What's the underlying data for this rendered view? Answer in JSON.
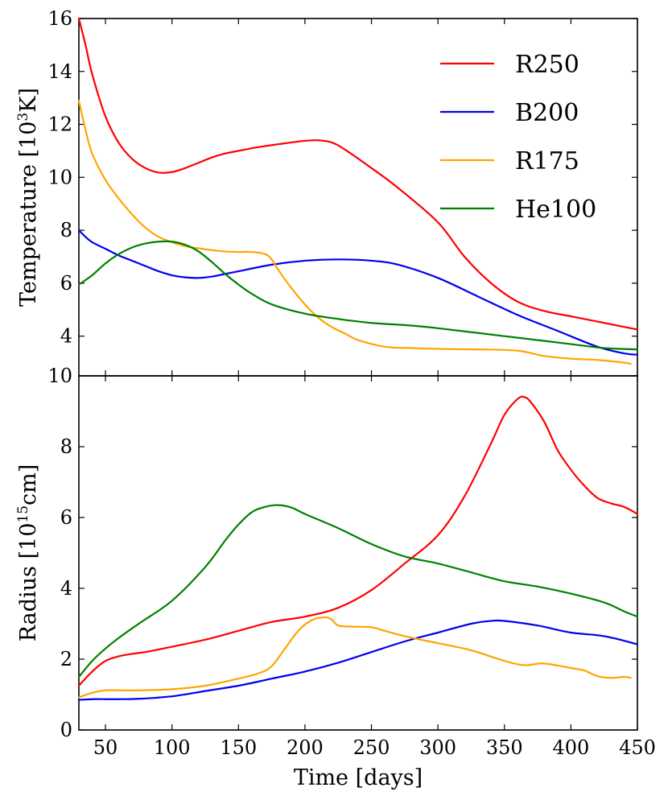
{
  "chart_data": [
    {
      "type": "line",
      "panel": "top",
      "ylabel_parts": [
        "Temperature [10",
        "3",
        "K]"
      ],
      "xlabel": "",
      "xlim": [
        30,
        450
      ],
      "ylim": [
        2.5,
        16
      ],
      "yticks": [
        4,
        6,
        8,
        10,
        12,
        14,
        16
      ],
      "ytick_labels": [
        "4",
        "6",
        "8",
        "10",
        "12",
        "14",
        "16"
      ],
      "legend_location": "top-right",
      "series": [
        {
          "name": "R250",
          "color": "#ff0000",
          "x": [
            30,
            35,
            40,
            50,
            60,
            70,
            80,
            90,
            100,
            110,
            120,
            130,
            140,
            150,
            160,
            170,
            180,
            190,
            200,
            210,
            220,
            230,
            250,
            270,
            300,
            320,
            340,
            360,
            380,
            400,
            420,
            440,
            450
          ],
          "y": [
            16.0,
            15.0,
            13.9,
            12.3,
            11.3,
            10.7,
            10.35,
            10.18,
            10.2,
            10.35,
            10.55,
            10.75,
            10.9,
            11.0,
            11.1,
            11.18,
            11.25,
            11.32,
            11.38,
            11.4,
            11.32,
            11.05,
            10.35,
            9.6,
            8.3,
            7.0,
            6.0,
            5.3,
            4.95,
            4.75,
            4.55,
            4.35,
            4.25
          ]
        },
        {
          "name": "B200",
          "color": "#0000ee",
          "x": [
            30,
            35,
            40,
            50,
            60,
            70,
            80,
            90,
            100,
            110,
            120,
            130,
            140,
            150,
            175,
            200,
            225,
            250,
            270,
            300,
            330,
            360,
            390,
            420,
            440,
            450
          ],
          "y": [
            8.0,
            7.75,
            7.55,
            7.3,
            7.05,
            6.85,
            6.65,
            6.45,
            6.3,
            6.22,
            6.2,
            6.25,
            6.35,
            6.45,
            6.7,
            6.85,
            6.9,
            6.85,
            6.7,
            6.2,
            5.5,
            4.8,
            4.2,
            3.6,
            3.35,
            3.3
          ]
        },
        {
          "name": "R175",
          "color": "#ffa500",
          "x": [
            30,
            35,
            40,
            50,
            60,
            70,
            80,
            90,
            100,
            110,
            120,
            130,
            140,
            150,
            160,
            170,
            175,
            180,
            190,
            200,
            210,
            220,
            230,
            240,
            260,
            280,
            300,
            330,
            360,
            380,
            400,
            420,
            440,
            445
          ],
          "y": [
            12.9,
            11.8,
            10.9,
            9.9,
            9.2,
            8.6,
            8.1,
            7.75,
            7.55,
            7.4,
            7.32,
            7.25,
            7.2,
            7.18,
            7.18,
            7.1,
            6.9,
            6.5,
            5.8,
            5.2,
            4.7,
            4.35,
            4.1,
            3.85,
            3.6,
            3.55,
            3.52,
            3.5,
            3.45,
            3.25,
            3.15,
            3.1,
            3.0,
            2.95
          ]
        },
        {
          "name": "He100",
          "color": "#008000",
          "x": [
            30,
            40,
            50,
            60,
            70,
            80,
            90,
            100,
            110,
            120,
            130,
            140,
            150,
            160,
            175,
            200,
            225,
            250,
            280,
            300,
            350,
            400,
            425,
            450
          ],
          "y": [
            5.95,
            6.3,
            6.75,
            7.1,
            7.35,
            7.5,
            7.57,
            7.57,
            7.45,
            7.2,
            6.8,
            6.35,
            5.95,
            5.6,
            5.2,
            4.85,
            4.65,
            4.5,
            4.4,
            4.3,
            4.0,
            3.7,
            3.55,
            3.5
          ]
        }
      ]
    },
    {
      "type": "line",
      "panel": "bottom",
      "ylabel_parts": [
        "Radius [10",
        "15",
        "cm]"
      ],
      "xlabel": "Time [days]",
      "xlim": [
        30,
        450
      ],
      "ylim": [
        0,
        10
      ],
      "xticks": [
        50,
        100,
        150,
        200,
        250,
        300,
        350,
        400,
        450
      ],
      "xtick_labels": [
        "50",
        "100",
        "150",
        "200",
        "250",
        "300",
        "350",
        "400",
        "450"
      ],
      "yticks": [
        0,
        2,
        4,
        6,
        8,
        10
      ],
      "ytick_labels": [
        "0",
        "2",
        "4",
        "6",
        "8",
        "10"
      ],
      "series": [
        {
          "name": "R250",
          "color": "#ff0000",
          "x": [
            30,
            40,
            50,
            60,
            70,
            80,
            100,
            125,
            150,
            175,
            200,
            225,
            250,
            275,
            300,
            320,
            340,
            350,
            360,
            365,
            370,
            380,
            390,
            400,
            410,
            420,
            430,
            440,
            450
          ],
          "y": [
            1.25,
            1.65,
            1.95,
            2.08,
            2.15,
            2.2,
            2.35,
            2.55,
            2.8,
            3.05,
            3.2,
            3.45,
            3.95,
            4.7,
            5.5,
            6.6,
            8.1,
            8.9,
            9.35,
            9.4,
            9.25,
            8.7,
            7.9,
            7.35,
            6.9,
            6.55,
            6.4,
            6.3,
            6.1
          ]
        },
        {
          "name": "B200",
          "color": "#0000ee",
          "x": [
            30,
            40,
            50,
            60,
            75,
            100,
            125,
            150,
            175,
            200,
            225,
            250,
            275,
            300,
            325,
            340,
            350,
            375,
            400,
            425,
            450
          ],
          "y": [
            0.85,
            0.87,
            0.87,
            0.87,
            0.88,
            0.95,
            1.1,
            1.25,
            1.45,
            1.65,
            1.9,
            2.2,
            2.5,
            2.75,
            3.0,
            3.08,
            3.08,
            2.95,
            2.75,
            2.65,
            2.42
          ]
        },
        {
          "name": "R175",
          "color": "#ffa500",
          "x": [
            30,
            40,
            50,
            60,
            75,
            100,
            125,
            150,
            165,
            175,
            185,
            195,
            205,
            215,
            220,
            225,
            235,
            250,
            260,
            275,
            300,
            325,
            350,
            365,
            378,
            390,
            400,
            410,
            420,
            430,
            440,
            445
          ],
          "y": [
            0.92,
            1.05,
            1.12,
            1.12,
            1.12,
            1.15,
            1.25,
            1.45,
            1.6,
            1.8,
            2.3,
            2.8,
            3.1,
            3.18,
            3.12,
            2.95,
            2.92,
            2.9,
            2.8,
            2.65,
            2.45,
            2.25,
            1.95,
            1.83,
            1.88,
            1.82,
            1.75,
            1.68,
            1.52,
            1.47,
            1.5,
            1.47
          ]
        },
        {
          "name": "He100",
          "color": "#008000",
          "x": [
            30,
            40,
            50,
            60,
            75,
            100,
            125,
            140,
            150,
            160,
            170,
            180,
            190,
            200,
            225,
            250,
            275,
            300,
            325,
            350,
            375,
            400,
            425,
            440,
            450
          ],
          "y": [
            1.5,
            1.95,
            2.3,
            2.6,
            3.0,
            3.65,
            4.6,
            5.35,
            5.8,
            6.15,
            6.3,
            6.35,
            6.28,
            6.1,
            5.7,
            5.25,
            4.9,
            4.7,
            4.45,
            4.2,
            4.05,
            3.85,
            3.6,
            3.35,
            3.2
          ]
        }
      ]
    }
  ]
}
